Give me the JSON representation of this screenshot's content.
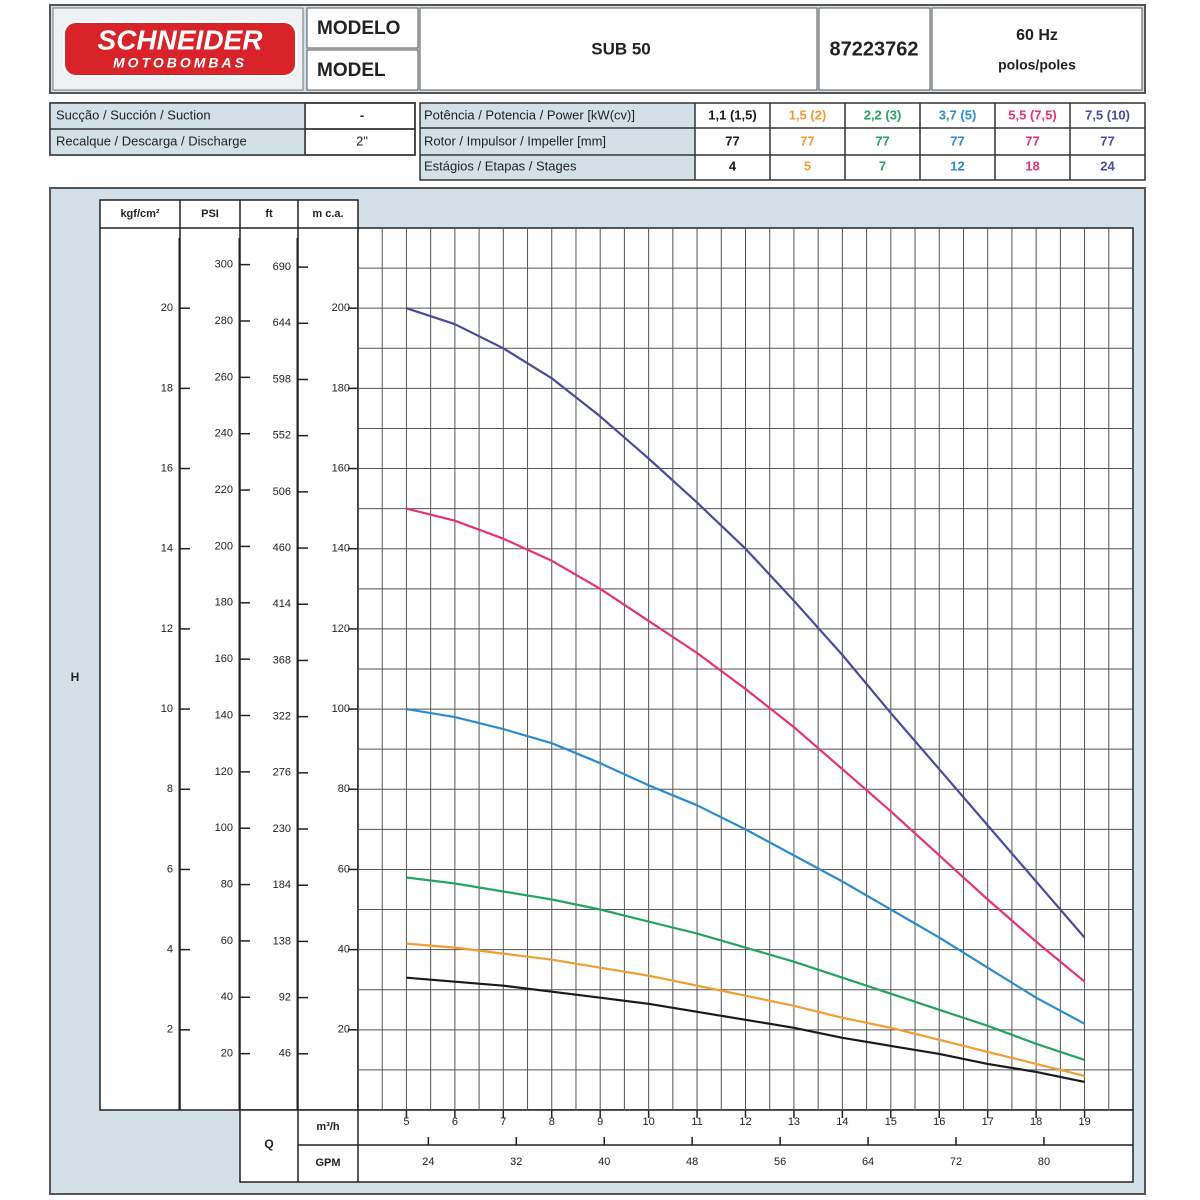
{
  "header": {
    "logo": {
      "brand": "SCHNEIDER",
      "sub": "MOTOBOMBAS"
    },
    "model_label": [
      "MODELO",
      "MODEL"
    ],
    "model": "SUB 50",
    "code": "87223762",
    "frequency": "60 Hz",
    "poles": "polos/poles"
  },
  "specs": {
    "suction_label": "Sucção / Succión / Suction",
    "suction": "-",
    "discharge_label": "Recalque / Descarga / Discharge",
    "discharge": "2\"",
    "power_label": "Potência / Potencia / Power [kW(cv)]",
    "rotor_label": "Rotor / Impulsor / Impeller [mm]",
    "stages_label": "Estágios / Etapas / Stages",
    "columns": [
      {
        "power": "1,1 (1,5)",
        "rotor": 77,
        "stages": 4
      },
      {
        "power": "1,5 (2)",
        "rotor": 77,
        "stages": 5
      },
      {
        "power": "2,2 (3)",
        "rotor": 77,
        "stages": 7
      },
      {
        "power": "3,7 (5)",
        "rotor": 77,
        "stages": 12
      },
      {
        "power": "5,5 (7,5)",
        "rotor": 77,
        "stages": 18
      },
      {
        "power": "7,5 (10)",
        "rotor": 77,
        "stages": 24
      }
    ]
  },
  "chart_data": {
    "type": "line",
    "y_label": "H",
    "x_label": "Q",
    "x_unit": "m³/h",
    "y_unit": "m c.a.",
    "x": [
      5,
      6,
      7,
      8,
      9,
      10,
      11,
      12,
      13,
      14,
      15,
      16,
      17,
      18,
      19
    ],
    "xlim": [
      4,
      20
    ],
    "xticks": [
      5,
      6,
      7,
      8,
      9,
      10,
      11,
      12,
      13,
      14,
      15,
      16,
      17,
      18,
      19
    ],
    "xgrid": [
      4.5,
      5.5,
      6.5,
      7.5,
      8.5,
      9.5,
      10.5,
      11.5,
      12.5,
      13.5,
      14.5,
      15.5,
      16.5,
      17.5,
      18.5,
      19.5
    ],
    "ylim": [
      0,
      220
    ],
    "yticks": [
      20,
      40,
      60,
      80,
      100,
      120,
      140,
      160,
      180,
      200
    ],
    "ygrid": [
      10,
      30,
      50,
      70,
      90,
      110,
      130,
      150,
      170,
      190,
      210
    ],
    "series": [
      {
        "color": "#1a1a1a",
        "values": [
          33,
          32,
          31,
          29.5,
          28,
          26.5,
          24.5,
          22.5,
          20.5,
          18,
          16,
          14,
          11.5,
          9.5,
          7
        ]
      },
      {
        "color": "#f39c32",
        "values": [
          41.5,
          40.5,
          39,
          37.5,
          35.5,
          33.5,
          31,
          28.5,
          26,
          23,
          20.5,
          17.5,
          14.5,
          11.5,
          8.5
        ]
      },
      {
        "color": "#22a55f",
        "values": [
          58,
          56.5,
          54.5,
          52.5,
          50,
          47,
          44,
          40.5,
          37,
          33,
          29,
          25,
          21,
          16.5,
          12.5
        ]
      },
      {
        "color": "#2a8bd0",
        "values": [
          100,
          98,
          95,
          91.5,
          86.5,
          81,
          76,
          70,
          63.5,
          57,
          50,
          43,
          35.5,
          28,
          21.5
        ]
      },
      {
        "color": "#e6336c",
        "values": [
          150,
          147,
          142.5,
          137,
          130,
          122,
          114,
          105,
          95.5,
          85,
          74.5,
          63.5,
          52.5,
          42,
          32
        ]
      },
      {
        "color": "#4b4a9c",
        "values": [
          200,
          196,
          190,
          182.5,
          173,
          162.5,
          151.5,
          140,
          127,
          113.5,
          99,
          85,
          71,
          57,
          43
        ]
      }
    ],
    "secondary_x": {
      "unit": "GPM",
      "xlim": [
        17.6,
        88.1
      ],
      "xticks": [
        24,
        32,
        40,
        48,
        56,
        64,
        72,
        80
      ]
    },
    "left_axes": [
      {
        "unit": "kgf/cm²",
        "ylim": [
          0,
          22
        ],
        "yticks": [
          2,
          4,
          6,
          8,
          10,
          12,
          14,
          16,
          18,
          20
        ]
      },
      {
        "unit": "PSI",
        "ylim": [
          0,
          313
        ],
        "yticks": [
          20,
          40,
          60,
          80,
          100,
          120,
          140,
          160,
          180,
          200,
          220,
          240,
          260,
          280,
          300
        ]
      },
      {
        "unit": "ft",
        "ylim": [
          0,
          722
        ],
        "yticks": [
          46,
          92,
          138,
          184,
          230,
          276,
          322,
          368,
          414,
          460,
          506,
          552,
          598,
          644,
          690
        ]
      }
    ]
  }
}
